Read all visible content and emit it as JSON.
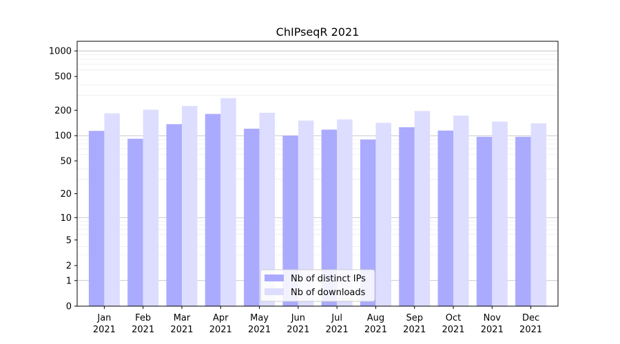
{
  "chart_data": {
    "type": "bar",
    "title": "ChIPseqR 2021",
    "xlabel": "",
    "ylabel": "",
    "scale": "log1p",
    "ylim": [
      0,
      1300
    ],
    "yticks": [
      0,
      1,
      2,
      5,
      10,
      20,
      50,
      100,
      200,
      500,
      1000
    ],
    "categories": [
      "Jan",
      "Feb",
      "Mar",
      "Apr",
      "May",
      "Jun",
      "Jul",
      "Aug",
      "Sep",
      "Oct",
      "Nov",
      "Dec"
    ],
    "category_sublabel": "2021",
    "series": [
      {
        "name": "Nb of distinct IPs",
        "color": "#aaaaff",
        "values": [
          114,
          92,
          137,
          181,
          121,
          100,
          118,
          90,
          126,
          115,
          97,
          97
        ]
      },
      {
        "name": "Nb of downloads",
        "color": "#ddddff",
        "values": [
          184,
          203,
          225,
          278,
          187,
          151,
          156,
          142,
          196,
          173,
          147,
          140
        ]
      }
    ],
    "legend_position": "lower-center",
    "grid": true
  }
}
